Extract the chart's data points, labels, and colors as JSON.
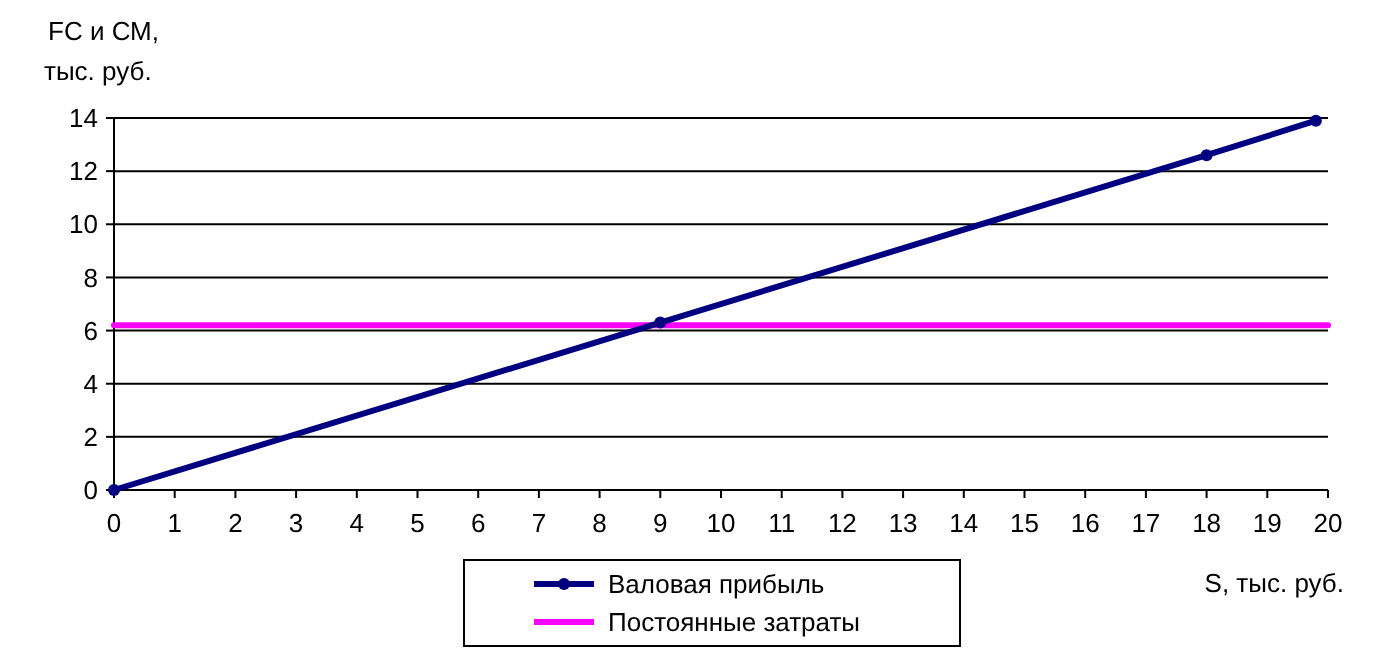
{
  "chart_data": {
    "type": "line",
    "xlabel": "S, тыс. руб.",
    "ylabel": "FC и СМ,\nтыс. руб.",
    "xlim": [
      0,
      20
    ],
    "xticks": [
      0,
      1,
      2,
      3,
      4,
      5,
      6,
      7,
      8,
      9,
      10,
      11,
      12,
      13,
      14,
      15,
      16,
      17,
      18,
      19,
      20
    ],
    "ylim": [
      0,
      14
    ],
    "yticks": [
      0,
      2,
      4,
      6,
      8,
      10,
      12,
      14
    ],
    "grid": "y",
    "legend": "bottom",
    "line_style": "solid",
    "series": [
      {
        "name": "Валовая прибыль",
        "color": "#000080",
        "marker": "circle",
        "x": [
          0,
          9,
          18,
          19.8
        ],
        "values": [
          0,
          6.3,
          12.6,
          13.9
        ]
      },
      {
        "name": "Постоянные затраты",
        "color": "#ff00ff",
        "marker": "none",
        "x": [
          0,
          20
        ],
        "values": [
          6.2,
          6.2
        ]
      }
    ]
  }
}
